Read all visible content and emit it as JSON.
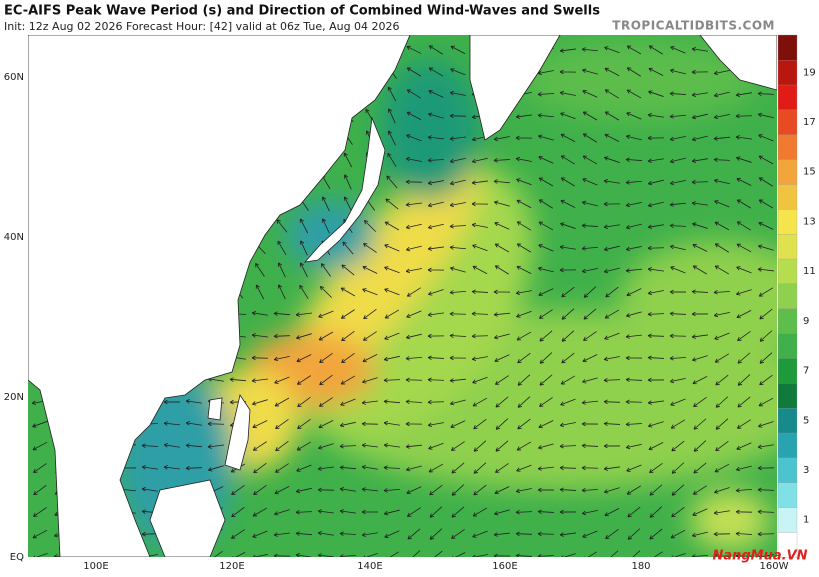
{
  "header": {
    "title": "EC-AIFS Peak Wave Period (s) and Direction of Combined Wind-Waves and Swells",
    "subtitle": "Init: 12z Aug 02 2026   Forecast Hour: [42]   valid at 06z Tue, Aug 04 2026",
    "source": "TROPICALTIDBITS.COM"
  },
  "map": {
    "lat_labels": [
      "60N",
      "40N",
      "20N",
      "EQ"
    ],
    "lon_labels": [
      "100E",
      "120E",
      "140E",
      "160E",
      "180",
      "160W"
    ]
  },
  "colorbar": {
    "labels": [
      "1",
      "3",
      "5",
      "7",
      "9",
      "11",
      "13",
      "15",
      "17",
      "19"
    ]
  },
  "watermark": "NangMua.VN"
}
